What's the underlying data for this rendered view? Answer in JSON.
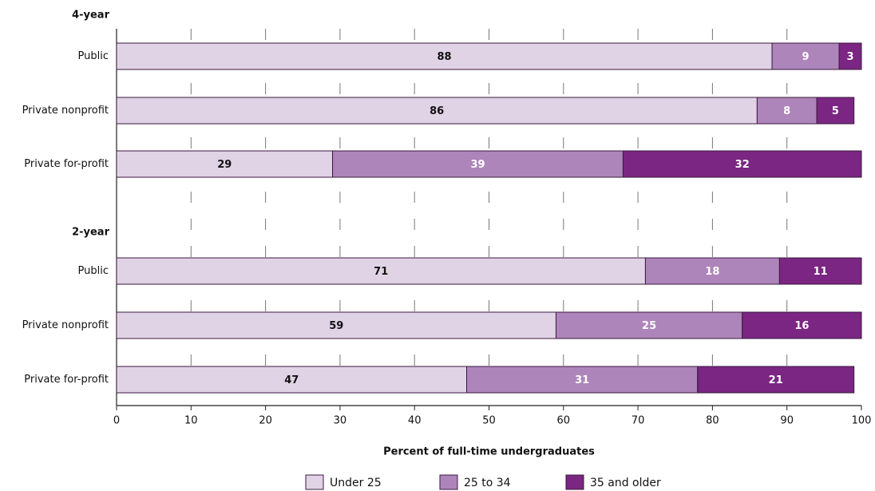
{
  "chart_data": {
    "type": "bar",
    "orientation": "horizontal",
    "stacked": true,
    "xlabel": "Percent of full-time undergraduates",
    "xlim": [
      0,
      100
    ],
    "xticks": [
      0,
      10,
      20,
      30,
      40,
      50,
      60,
      70,
      80,
      90,
      100
    ],
    "grid": "dashed vertical",
    "legend_position": "bottom",
    "groups": [
      {
        "label": "4-year",
        "categories": [
          "Public",
          "Private nonprofit",
          "Private for-profit"
        ],
        "series": [
          {
            "name": "Under 25",
            "values": [
              88,
              86,
              29
            ]
          },
          {
            "name": "25 to 34",
            "values": [
              9,
              8,
              39
            ]
          },
          {
            "name": "35 and older",
            "values": [
              3,
              5,
              32
            ]
          }
        ]
      },
      {
        "label": "2-year",
        "categories": [
          "Public",
          "Private nonprofit",
          "Private for-profit"
        ],
        "series": [
          {
            "name": "Under 25",
            "values": [
              71,
              59,
              47
            ]
          },
          {
            "name": "25 to 34",
            "values": [
              18,
              25,
              31
            ]
          },
          {
            "name": "35 and older",
            "values": [
              11,
              16,
              21
            ]
          }
        ]
      }
    ],
    "colors": [
      "#e1d3e6",
      "#ae85ba",
      "#7b2682"
    ],
    "label_colors": [
      "#111111",
      "#ffffff",
      "#ffffff"
    ]
  }
}
